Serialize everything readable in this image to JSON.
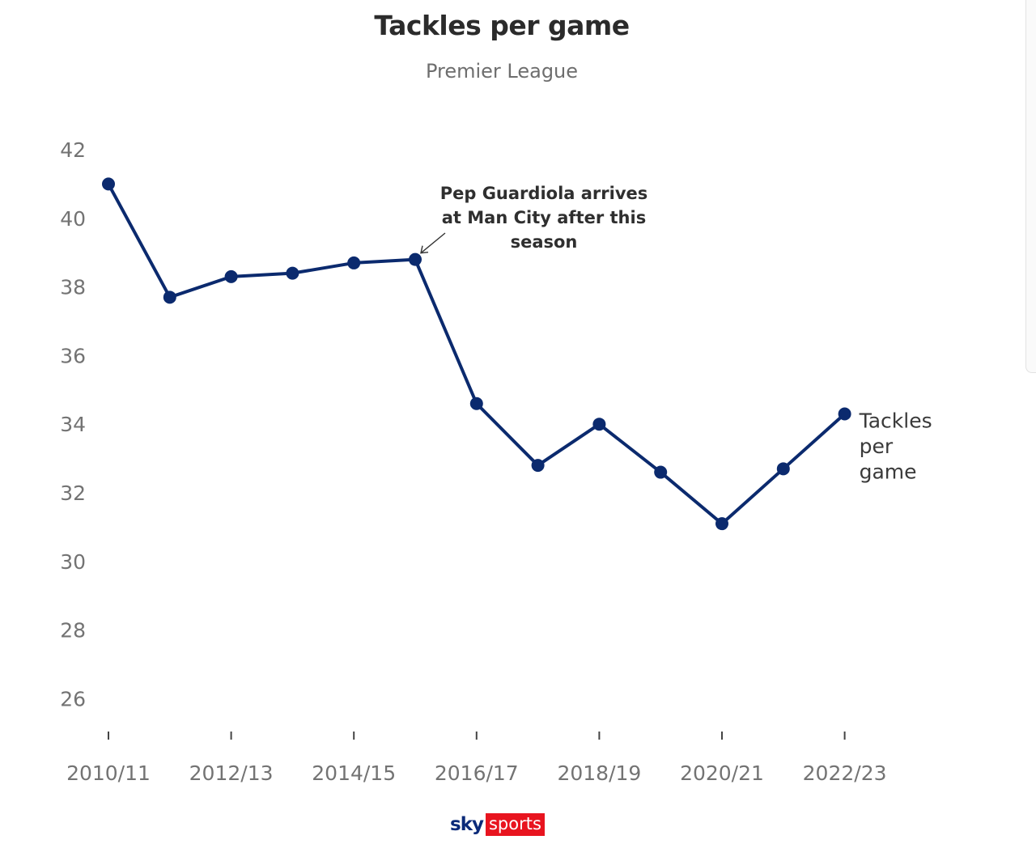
{
  "chart_data": {
    "type": "line",
    "title": "Tackles per game",
    "subtitle": "Premier League",
    "xlabel": "",
    "ylabel": "",
    "x": [
      "2010/11",
      "2011/12",
      "2012/13",
      "2013/14",
      "2014/15",
      "2015/16",
      "2016/17",
      "2017/18",
      "2018/19",
      "2019/20",
      "2020/21",
      "2021/22",
      "2022/23"
    ],
    "x_tick_labels": [
      "2010/11",
      "2012/13",
      "2014/15",
      "2016/17",
      "2018/19",
      "2020/21",
      "2022/23"
    ],
    "series": [
      {
        "name": "Tackles per game",
        "values": [
          41.0,
          37.7,
          38.3,
          38.4,
          38.7,
          38.8,
          34.6,
          32.8,
          34.0,
          32.6,
          31.1,
          32.7,
          34.3
        ]
      }
    ],
    "ylim": [
      25,
      42
    ],
    "yticks": [
      26,
      28,
      30,
      32,
      34,
      36,
      38,
      40,
      42
    ],
    "grid": false,
    "legend": "none",
    "series_label": {
      "lines": [
        "Tackles",
        "per",
        "game"
      ],
      "position": "end-of-line"
    },
    "annotations": [
      {
        "text_lines": [
          "Pep Guardiola arrives",
          "at Man City after this",
          "season"
        ],
        "target_x": "2015/16"
      }
    ],
    "colors": {
      "series": "#0b2a6e",
      "tick_text": "#737373",
      "title": "#2b2b2b",
      "subtitle": "#6e6e6e"
    }
  },
  "brand": {
    "sky": "sky",
    "sports": "sports"
  }
}
